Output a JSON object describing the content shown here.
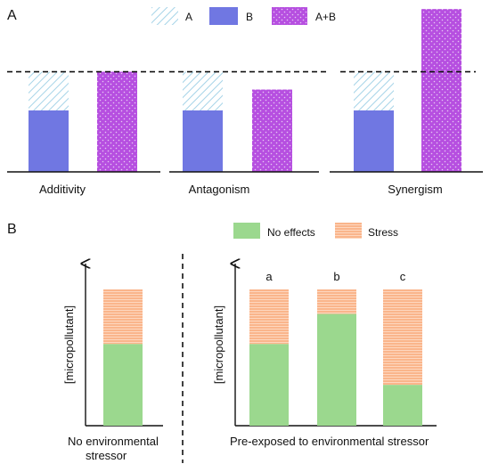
{
  "panel_a": {
    "label": "A",
    "legend": [
      {
        "key": "A",
        "label": "A"
      },
      {
        "key": "B",
        "label": "B"
      },
      {
        "key": "AB",
        "label": "A+B"
      }
    ],
    "groups": [
      {
        "name": "Additivity"
      },
      {
        "name": "Antagonism"
      },
      {
        "name": "Synergism"
      }
    ]
  },
  "panel_b": {
    "label": "B",
    "legend": [
      {
        "key": "no_effects",
        "label": "No effects"
      },
      {
        "key": "stress",
        "label": "Stress"
      }
    ],
    "y_axis_label": "[micropollutant]",
    "left_caption": [
      "No environmental",
      "stressor"
    ],
    "right_caption": "Pre-exposed to environmental stressor",
    "bar_letters": [
      "a",
      "b",
      "c"
    ]
  },
  "colors": {
    "B": "#7077e2",
    "AB": "#b64fe0",
    "A_hatch": "#a6d4e8",
    "no_effects": "#9bd88e",
    "stress": "#fab58b"
  },
  "chart_data": [
    {
      "type": "bar",
      "title": "",
      "categories": [
        "Additivity",
        "Antagonism",
        "Synergism"
      ],
      "series": [
        {
          "name": "B",
          "values": [
            1.0,
            1.0,
            1.0
          ]
        },
        {
          "name": "A",
          "values": [
            0.63,
            0.63,
            0.63
          ]
        },
        {
          "name": "A+B",
          "values": [
            1.63,
            1.34,
            2.65
          ]
        }
      ],
      "reference_line": 1.63,
      "stacked": [
        "A",
        "B"
      ],
      "grid": false
    },
    {
      "type": "bar",
      "title": "",
      "ylabel": "[micropollutant]",
      "xlabel": "No environmental stressor",
      "categories": [
        ""
      ],
      "stacked": true,
      "series": [
        {
          "name": "No effects",
          "values": [
            0.6
          ]
        },
        {
          "name": "Stress",
          "values": [
            0.4
          ]
        }
      ],
      "grid": false
    },
    {
      "type": "bar",
      "title": "",
      "ylabel": "[micropollutant]",
      "xlabel": "Pre-exposed to environmental stressor",
      "categories": [
        "a",
        "b",
        "c"
      ],
      "stacked": true,
      "series": [
        {
          "name": "No effects",
          "values": [
            0.6,
            0.82,
            0.3
          ]
        },
        {
          "name": "Stress",
          "values": [
            0.4,
            0.18,
            0.7
          ]
        }
      ],
      "grid": false
    }
  ]
}
